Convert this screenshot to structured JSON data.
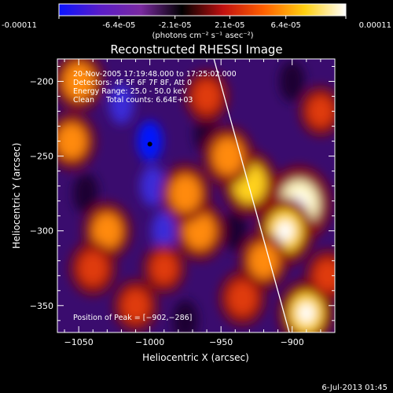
{
  "figure": {
    "footer_date": "6-Jul-2013 01:45"
  },
  "colorbar": {
    "tick_labels": [
      "-0.00011",
      "-6.4e-05",
      "-2.1e-05",
      "2.1e-05",
      "6.4e-05",
      "0.00011"
    ],
    "unit_label": "(photons cm⁻² s⁻¹ asec⁻²)",
    "colormap": "blue-purple-red-orange-yellow-white",
    "colors": [
      "#0a14ff",
      "#5a1cc8",
      "#7a2aa0",
      "#000000",
      "#c01010",
      "#ff6000",
      "#ffd010",
      "#ffffff"
    ]
  },
  "chart_data": {
    "type": "heatmap",
    "title": "Reconstructed RHESSI Image",
    "xlabel": "Heliocentric X (arcsec)",
    "ylabel": "Heliocentric Y (arcsec)",
    "xlim": [
      -1065,
      -870
    ],
    "ylim": [
      -368,
      -185
    ],
    "x_ticks": [
      -1050,
      -1000,
      -950,
      -900
    ],
    "y_ticks": [
      -200,
      -250,
      -300,
      -350
    ],
    "x_tick_labels": [
      "−1050",
      "−1000",
      "−950",
      "−900"
    ],
    "y_tick_labels": [
      "−200",
      "−250",
      "−300",
      "−350"
    ],
    "value_range": [
      -0.00011,
      0.00011
    ],
    "info_lines": [
      "20-Nov-2005 17:19:48.000 to 17:25:02.000",
      "Detectors: 4F 5F 6F 7F 8F, Att 0",
      "Energy Range: 25.0 - 50.0 keV",
      "Clean     Total counts: 6.64E+03"
    ],
    "peak_label": "Position of Peak = [−902,−286]",
    "peak": [
      -902,
      -286
    ],
    "limb_line": [
      [
        -955,
        -185
      ],
      [
        -902,
        -368
      ]
    ],
    "marker": [
      -1000,
      -242
    ],
    "bright_sources": [
      {
        "x": -895,
        "y": -282,
        "level": 0.95
      },
      {
        "x": -905,
        "y": -300,
        "level": 0.8
      },
      {
        "x": -930,
        "y": -268,
        "level": 0.7
      },
      {
        "x": -945,
        "y": -250,
        "level": 0.6
      },
      {
        "x": -890,
        "y": -355,
        "level": 0.75
      },
      {
        "x": -920,
        "y": -320,
        "level": 0.55
      },
      {
        "x": -965,
        "y": -300,
        "level": 0.6
      },
      {
        "x": -975,
        "y": -275,
        "level": 0.6
      },
      {
        "x": -1050,
        "y": -200,
        "level": 0.6
      },
      {
        "x": -1055,
        "y": -240,
        "level": 0.55
      },
      {
        "x": -1030,
        "y": -300,
        "level": 0.55
      },
      {
        "x": -1040,
        "y": -325,
        "level": 0.5
      },
      {
        "x": -1010,
        "y": -350,
        "level": 0.45
      },
      {
        "x": -960,
        "y": -210,
        "level": 0.45
      },
      {
        "x": -935,
        "y": -345,
        "level": 0.5
      },
      {
        "x": -990,
        "y": -325,
        "level": 0.4
      },
      {
        "x": -880,
        "y": -220,
        "level": 0.4
      },
      {
        "x": -875,
        "y": -330,
        "level": 0.45
      }
    ],
    "dark_regions": [
      {
        "x": -1000,
        "y": -240,
        "level": -0.9
      },
      {
        "x": -998,
        "y": -270,
        "level": -0.7
      },
      {
        "x": -990,
        "y": -300,
        "level": -0.6
      },
      {
        "x": -1020,
        "y": -215,
        "level": -0.6
      },
      {
        "x": -960,
        "y": -235,
        "level": -0.55
      },
      {
        "x": -940,
        "y": -300,
        "level": -0.5
      },
      {
        "x": -1045,
        "y": -275,
        "level": -0.45
      },
      {
        "x": -900,
        "y": -200,
        "level": -0.5
      },
      {
        "x": -975,
        "y": -360,
        "level": -0.45
      }
    ]
  }
}
